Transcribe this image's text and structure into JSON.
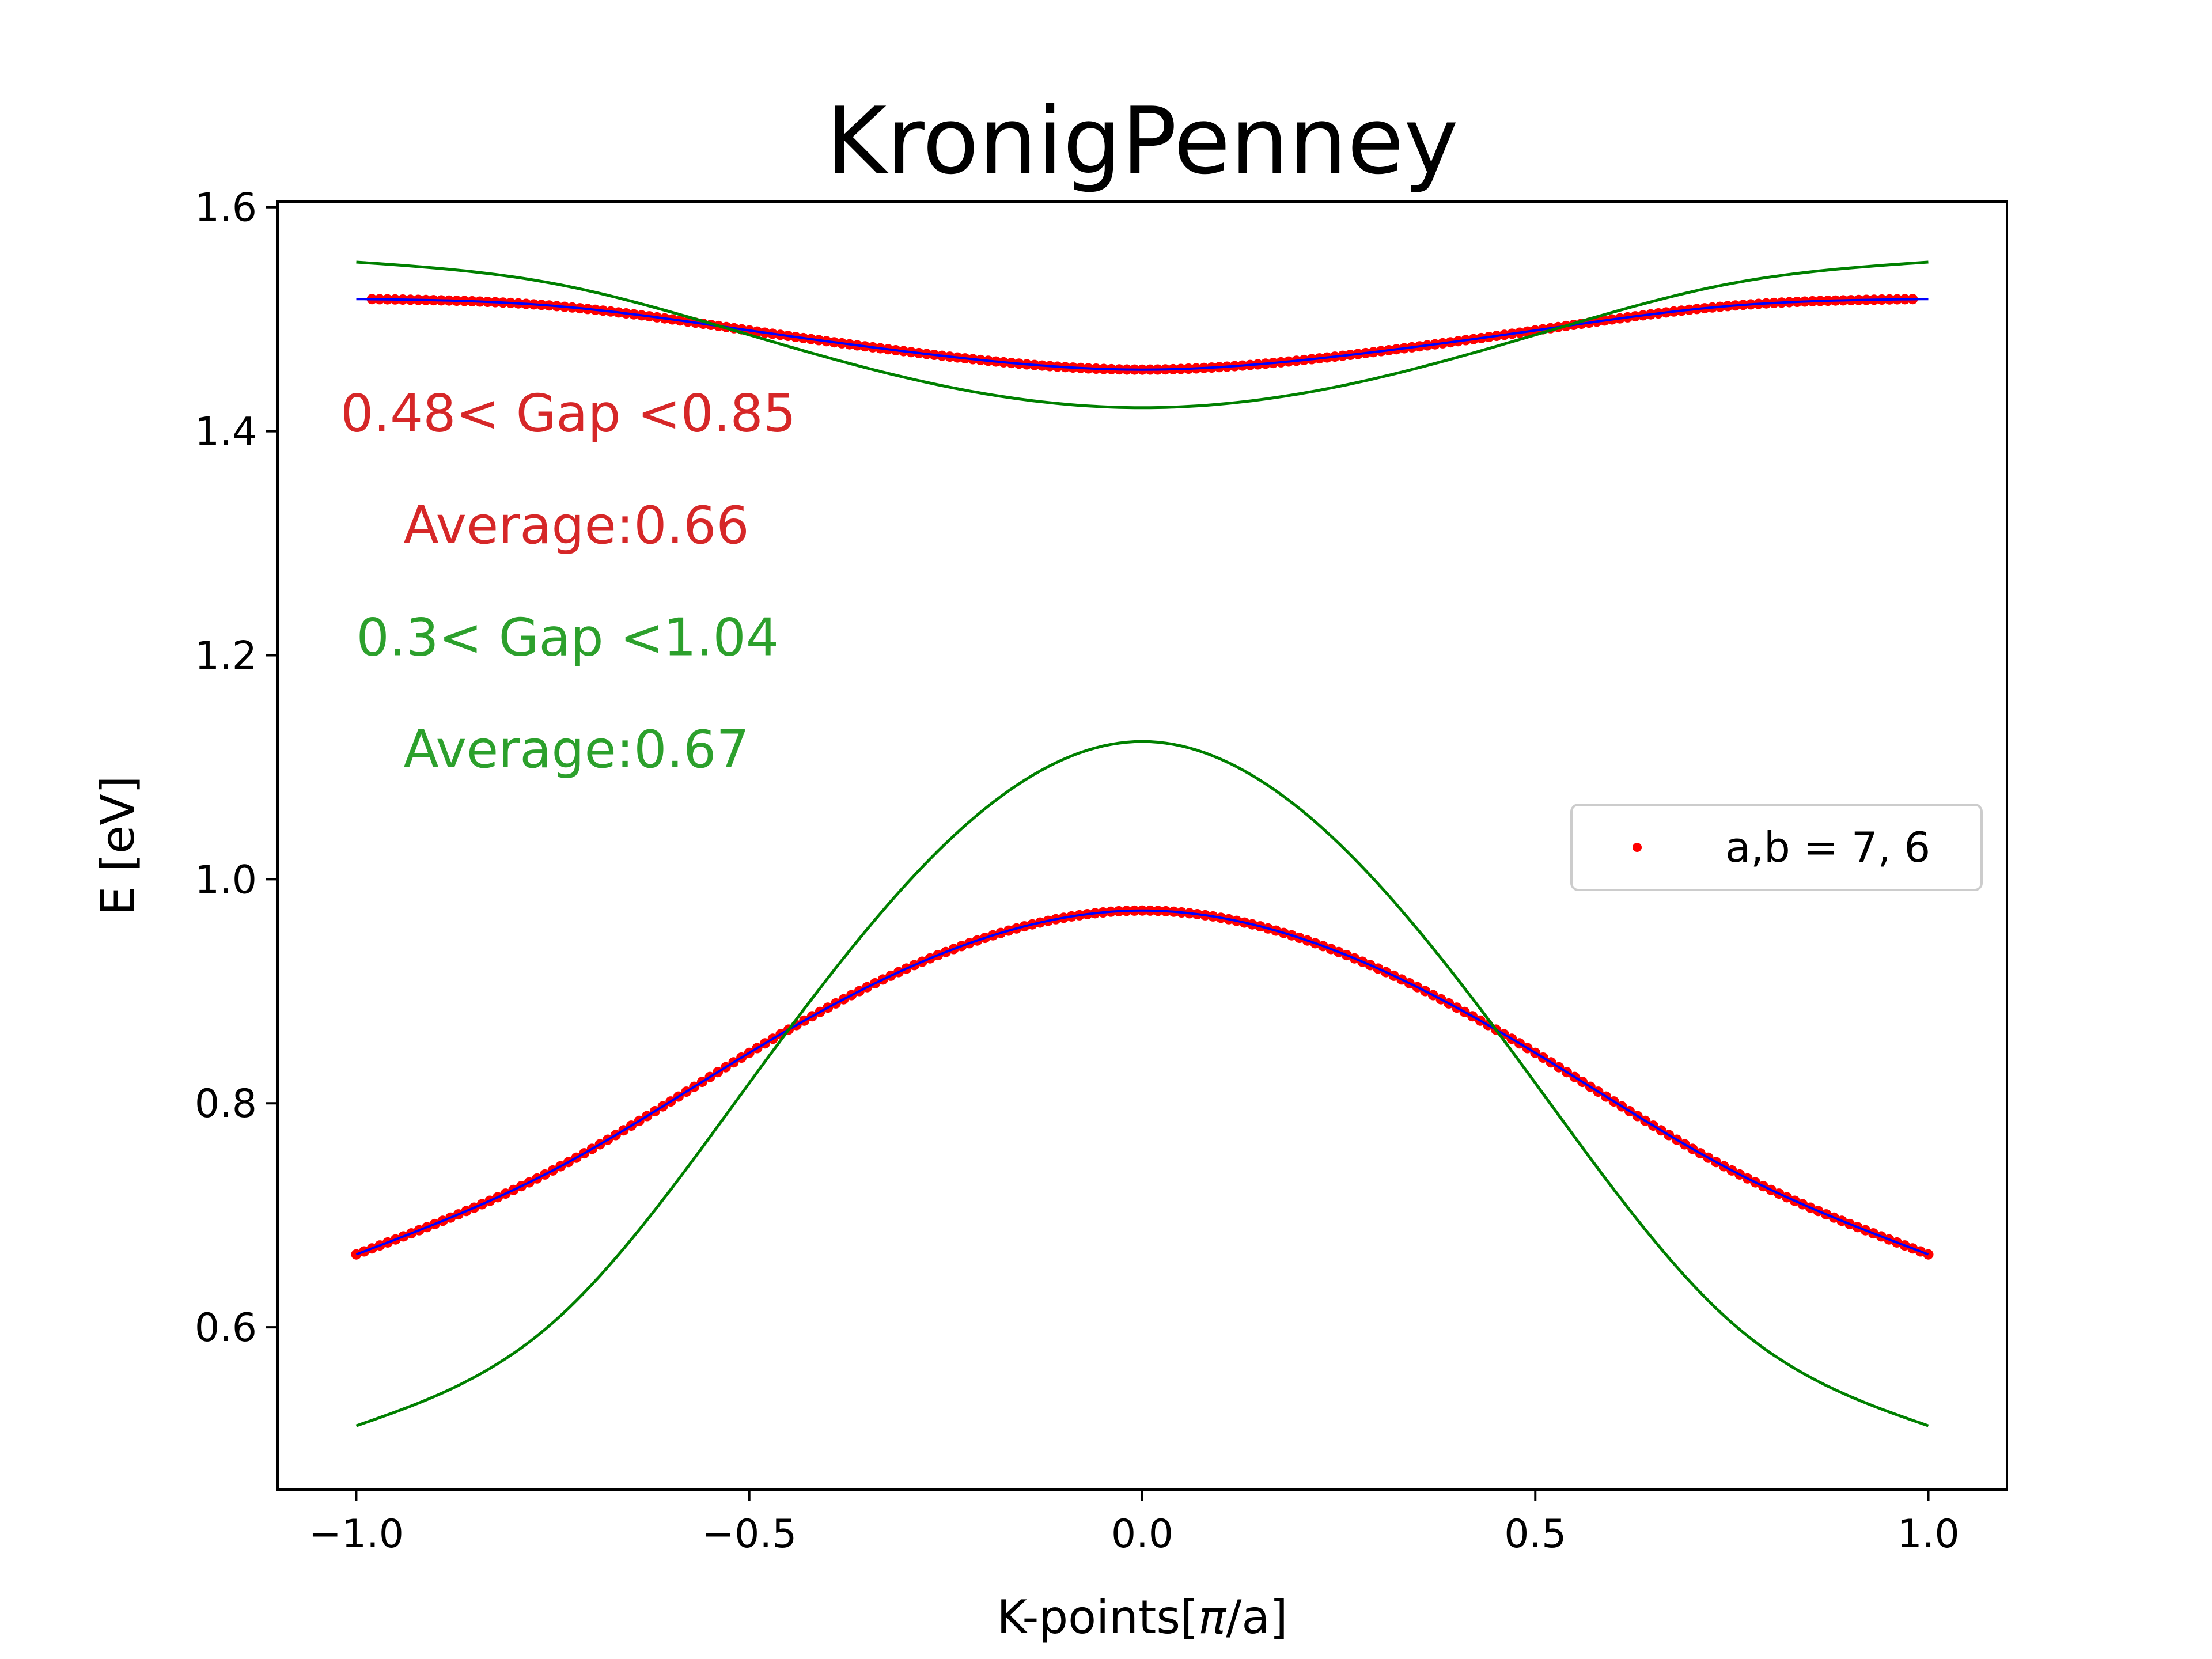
{
  "chart_data": {
    "type": "line",
    "title": "KronigPenney",
    "xlabel_main": "K-points[",
    "xlabel_symbol": "π",
    "xlabel_tail": "/a]",
    "ylabel": "E [eV]",
    "xlim": [
      -1.1,
      1.1
    ],
    "ylim": [
      0.455,
      1.605
    ],
    "x_ticks": [
      -1.0,
      -0.5,
      0.0,
      0.5,
      1.0
    ],
    "x_tick_labels": [
      "−1.0",
      "−0.5",
      "0.0",
      "0.5",
      "1.0"
    ],
    "y_ticks": [
      0.6,
      0.8,
      1.0,
      1.2,
      1.4,
      1.6
    ],
    "y_tick_labels": [
      "0.6",
      "0.8",
      "1.0",
      "1.2",
      "1.4",
      "1.6"
    ],
    "grid": false,
    "legend": {
      "placement": "center-right",
      "entries": [
        "a,b = 7, 6"
      ]
    },
    "annotations": [
      {
        "text": "0.48< Gap <0.85",
        "x": -1.02,
        "y": 1.4,
        "color": "#d62728"
      },
      {
        "text": "Average:0.66",
        "x": -0.94,
        "y": 1.3,
        "color": "#d62728"
      },
      {
        "text": "0.3< Gap <1.04",
        "x": -1.0,
        "y": 1.2,
        "color": "#2ca02c"
      },
      {
        "text": "Average:0.67",
        "x": -0.94,
        "y": 1.1,
        "color": "#2ca02c"
      }
    ],
    "series": [
      {
        "name": "a,b = 7, 6",
        "style": "scatter",
        "color": "#ff0000",
        "bands": [
          {
            "x": [
              -1.0,
              -0.75,
              -0.5,
              -0.25,
              0.0,
              0.25,
              0.5,
              0.75,
              1.0
            ],
            "y": [
              0.665,
              0.74,
              0.845,
              0.935,
              0.972,
              0.935,
              0.845,
              0.74,
              0.665
            ]
          },
          {
            "x": [
              -0.98,
              -0.75,
              -0.5,
              -0.25,
              0.0,
              0.25,
              0.5,
              0.75,
              0.98
            ],
            "y": [
              1.518,
              1.512,
              1.49,
              1.467,
              1.455,
              1.467,
              1.49,
              1.512,
              1.518
            ]
          }
        ]
      },
      {
        "style": "line",
        "color": "#0000ff",
        "bands": [
          {
            "x": [
              -1.0,
              -0.75,
              -0.5,
              -0.25,
              0.0,
              0.25,
              0.5,
              0.75,
              1.0
            ],
            "y": [
              0.665,
              0.74,
              0.845,
              0.935,
              0.972,
              0.935,
              0.845,
              0.74,
              0.665
            ]
          },
          {
            "x": [
              -1.0,
              -0.75,
              -0.5,
              -0.25,
              0.0,
              0.25,
              0.5,
              0.75,
              1.0
            ],
            "y": [
              1.518,
              1.512,
              1.49,
              1.467,
              1.455,
              1.467,
              1.49,
              1.512,
              1.518
            ]
          }
        ]
      },
      {
        "style": "line",
        "color": "#008000",
        "bands": [
          {
            "x": [
              -1.0,
              -0.75,
              -0.5,
              -0.25,
              0.0,
              0.25,
              0.5,
              0.75,
              1.0
            ],
            "y": [
              0.512,
              0.604,
              0.818,
              1.032,
              1.123,
              1.032,
              0.818,
              0.604,
              0.512
            ]
          },
          {
            "x": [
              -1.0,
              -0.75,
              -0.5,
              -0.25,
              0.0,
              0.25,
              0.5,
              0.75,
              1.0
            ],
            "y": [
              1.551,
              1.532,
              1.486,
              1.44,
              1.421,
              1.44,
              1.486,
              1.532,
              1.551
            ]
          }
        ]
      }
    ]
  }
}
